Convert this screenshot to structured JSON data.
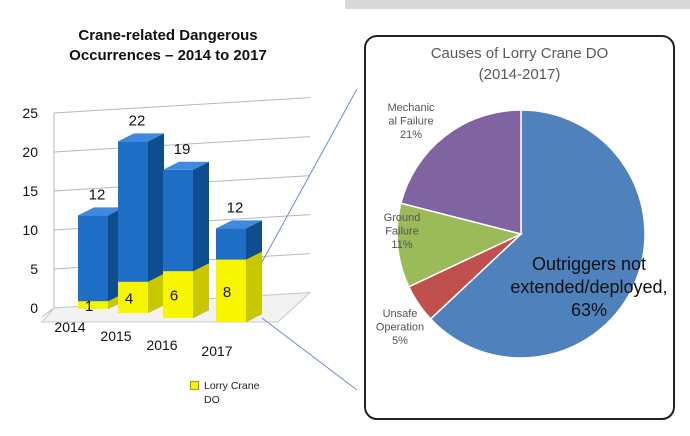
{
  "colors": {
    "bar_total_front": "#1f6fc6",
    "bar_total_side": "#0e4d8e",
    "bar_total_top": "#3f8ae0",
    "bar_lorry_front": "#f7f500",
    "bar_lorry_side": "#c9c800",
    "pie_outriggers": "#4f81bd",
    "pie_unsafe": "#c0504d",
    "pie_ground": "#9bbb59",
    "pie_mechanical": "#8064a2"
  },
  "chart_data": [
    {
      "type": "bar",
      "title": "Crane-related Dangerous Occurrences – 2014 to 2017",
      "categories": [
        "2014",
        "2015",
        "2016",
        "2017"
      ],
      "series": [
        {
          "name": "",
          "values": [
            12,
            22,
            19,
            12
          ]
        },
        {
          "name": "Lorry Crane DO",
          "values": [
            1,
            4,
            6,
            8
          ]
        }
      ],
      "ylim": [
        0,
        25
      ],
      "yticks": [
        "0",
        "5",
        "10",
        "15",
        "20",
        "25"
      ],
      "grid": true,
      "legend": "bottom-right"
    },
    {
      "type": "pie",
      "title": "Causes of Lorry Crane DO (2014-2017)",
      "slices": [
        {
          "label": "Outriggers not extended/deployed",
          "value": 63,
          "value_label": "63%",
          "color_key": "pie_outriggers"
        },
        {
          "label": "Unsafe Operation",
          "value": 5,
          "value_label": "5%",
          "color_key": "pie_unsafe"
        },
        {
          "label": "Ground Failure",
          "value": 11,
          "value_label": "11%",
          "color_key": "pie_ground"
        },
        {
          "label": "Mechanical Failure",
          "value": 21,
          "value_label": "21%",
          "color_key": "pie_mechanical"
        }
      ]
    }
  ],
  "text": {
    "bar_title_line1": "Crane-related Dangerous",
    "bar_title_line2": "Occurrences – 2014 to 2017",
    "pie_title_line1": "Causes of Lorry Crane DO",
    "pie_title_line2": "(2014-2017)",
    "legend_line1": "Lorry Crane",
    "legend_line2": "DO",
    "pie_labels": {
      "mechanical": [
        "Mechanic",
        "al Failure",
        "21%"
      ],
      "ground": [
        "Ground",
        "Failure",
        "11%"
      ],
      "unsafe": [
        "Unsafe",
        "Operation",
        "5%"
      ],
      "outriggers": [
        "Outriggers not",
        "extended/deployed,",
        "63%"
      ]
    }
  }
}
